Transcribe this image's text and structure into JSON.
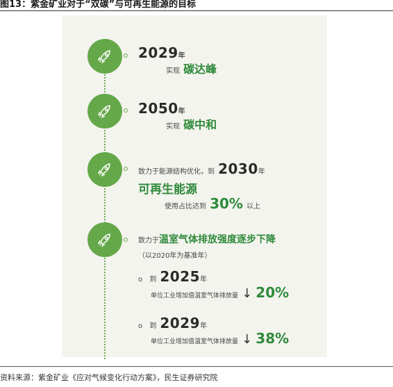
{
  "figure_title": "图13：紫金矿业对于“双碳”与可再生能源的目标",
  "source": "资料来源：紫金矿业《应对气候变化行动方案》，民生证券研究院",
  "milestones": {
    "m1": {
      "year": "2029",
      "year_unit": "年",
      "prefix": "实现",
      "goal": "碳达峰"
    },
    "m2": {
      "year": "2050",
      "year_unit": "年",
      "prefix": "实现",
      "goal": "碳中和"
    },
    "m3": {
      "line1_prefix": "致力于能源结构优化，到",
      "year": "2030",
      "year_unit": "年",
      "goal": "可再生能源",
      "sub_prefix": "使用占比达到",
      "percent": "30%",
      "sub_suffix": "以上"
    },
    "m4": {
      "prefix": "致力于",
      "goal": "温室气体排放强度逐步下降",
      "note": "（以2020年为基准年）",
      "targets": [
        {
          "bullet": "o",
          "to": "到",
          "year": "2025",
          "year_unit": "年",
          "desc": "单位工业增加值温室气体排放量",
          "arrow": "↓",
          "percent": "20%"
        },
        {
          "bullet": "o",
          "to": "到",
          "year": "2029",
          "year_unit": "年",
          "desc": "单位工业增加值温室气体排放量",
          "arrow": "↓",
          "percent": "38%"
        }
      ]
    }
  },
  "icons": [
    "rocket-icon"
  ],
  "colors": {
    "accent_green": "#65a84a",
    "text_green": "#2f8a3a",
    "panel_bg": "#f4f4ef"
  }
}
